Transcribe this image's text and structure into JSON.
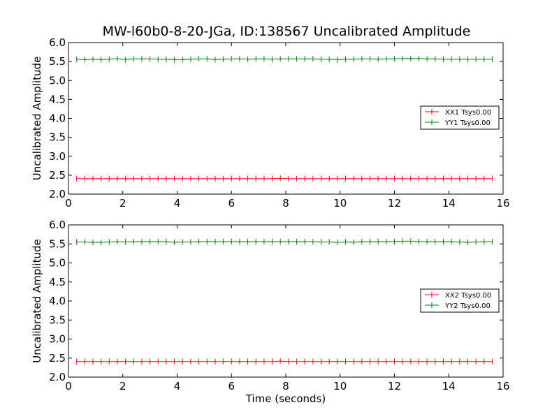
{
  "figure": {
    "title": "MW-l60b0-8-20-JGa, ID:138567 Uncalibrated Amplitude",
    "xlabel": "Time (seconds)"
  },
  "colors": {
    "xx": "#ff0000",
    "yy": "#008000",
    "axes": "#000000"
  },
  "chart_data": [
    {
      "type": "line",
      "ylabel": "Uncalibrated Amplitude",
      "xlim": [
        0,
        16
      ],
      "ylim": [
        2.0,
        6.0
      ],
      "xticks": [
        0,
        2,
        4,
        6,
        8,
        10,
        12,
        14,
        16
      ],
      "yticks": [
        2.0,
        2.5,
        3.0,
        3.5,
        4.0,
        4.5,
        5.0,
        5.5,
        6.0
      ],
      "legend_position": "center-right",
      "x": [
        0.3,
        0.6,
        0.9,
        1.2,
        1.5,
        1.8,
        2.1,
        2.4,
        2.7,
        3.0,
        3.3,
        3.6,
        3.9,
        4.2,
        4.5,
        4.8,
        5.1,
        5.4,
        5.7,
        6.0,
        6.3,
        6.6,
        6.9,
        7.2,
        7.5,
        7.8,
        8.1,
        8.4,
        8.7,
        9.0,
        9.3,
        9.6,
        9.9,
        10.2,
        10.5,
        10.8,
        11.1,
        11.4,
        11.7,
        12.0,
        12.3,
        12.6,
        12.9,
        13.2,
        13.5,
        13.8,
        14.1,
        14.4,
        14.7,
        15.0,
        15.3,
        15.6
      ],
      "series": [
        {
          "name": "XX1 Tsys0.00",
          "color_key": "xx",
          "values": [
            2.41,
            2.41,
            2.41,
            2.41,
            2.41,
            2.41,
            2.41,
            2.41,
            2.41,
            2.41,
            2.41,
            2.41,
            2.41,
            2.41,
            2.41,
            2.41,
            2.41,
            2.41,
            2.41,
            2.41,
            2.41,
            2.41,
            2.41,
            2.41,
            2.41,
            2.42,
            2.41,
            2.41,
            2.41,
            2.41,
            2.41,
            2.41,
            2.41,
            2.41,
            2.41,
            2.41,
            2.41,
            2.41,
            2.41,
            2.41,
            2.41,
            2.41,
            2.41,
            2.41,
            2.41,
            2.41,
            2.41,
            2.41,
            2.41,
            2.41,
            2.41,
            2.41
          ]
        },
        {
          "name": "YY1 Tsys0.00",
          "color_key": "yy",
          "values": [
            5.56,
            5.55,
            5.56,
            5.55,
            5.56,
            5.58,
            5.55,
            5.57,
            5.57,
            5.57,
            5.56,
            5.56,
            5.55,
            5.55,
            5.56,
            5.57,
            5.57,
            5.55,
            5.56,
            5.57,
            5.57,
            5.56,
            5.57,
            5.57,
            5.56,
            5.57,
            5.57,
            5.57,
            5.57,
            5.57,
            5.56,
            5.56,
            5.55,
            5.56,
            5.56,
            5.57,
            5.57,
            5.56,
            5.57,
            5.57,
            5.58,
            5.58,
            5.58,
            5.57,
            5.57,
            5.56,
            5.56,
            5.56,
            5.56,
            5.56,
            5.56,
            5.56
          ]
        }
      ]
    },
    {
      "type": "line",
      "ylabel": "Uncalibrated Amplitude",
      "xlim": [
        0,
        16
      ],
      "ylim": [
        2.0,
        6.0
      ],
      "xticks": [
        0,
        2,
        4,
        6,
        8,
        10,
        12,
        14,
        16
      ],
      "yticks": [
        2.0,
        2.5,
        3.0,
        3.5,
        4.0,
        4.5,
        5.0,
        5.5,
        6.0
      ],
      "legend_position": "center-right",
      "x": [
        0.3,
        0.6,
        0.9,
        1.2,
        1.5,
        1.8,
        2.1,
        2.4,
        2.7,
        3.0,
        3.3,
        3.6,
        3.9,
        4.2,
        4.5,
        4.8,
        5.1,
        5.4,
        5.7,
        6.0,
        6.3,
        6.6,
        6.9,
        7.2,
        7.5,
        7.8,
        8.1,
        8.4,
        8.7,
        9.0,
        9.3,
        9.6,
        9.9,
        10.2,
        10.5,
        10.8,
        11.1,
        11.4,
        11.7,
        12.0,
        12.3,
        12.6,
        12.9,
        13.2,
        13.5,
        13.8,
        14.1,
        14.4,
        14.7,
        15.0,
        15.3,
        15.6
      ],
      "series": [
        {
          "name": "XX2 Tsys0.00",
          "color_key": "xx",
          "values": [
            2.41,
            2.41,
            2.41,
            2.41,
            2.41,
            2.41,
            2.41,
            2.41,
            2.41,
            2.41,
            2.41,
            2.41,
            2.41,
            2.41,
            2.41,
            2.41,
            2.41,
            2.41,
            2.41,
            2.41,
            2.41,
            2.41,
            2.41,
            2.41,
            2.41,
            2.42,
            2.41,
            2.41,
            2.41,
            2.41,
            2.41,
            2.41,
            2.41,
            2.41,
            2.41,
            2.41,
            2.41,
            2.41,
            2.41,
            2.41,
            2.41,
            2.41,
            2.41,
            2.41,
            2.41,
            2.41,
            2.41,
            2.41,
            2.41,
            2.41,
            2.41,
            2.41
          ]
        },
        {
          "name": "YY2 Tsys0.00",
          "color_key": "yy",
          "values": [
            5.55,
            5.55,
            5.54,
            5.54,
            5.55,
            5.56,
            5.55,
            5.56,
            5.56,
            5.56,
            5.56,
            5.56,
            5.54,
            5.55,
            5.55,
            5.56,
            5.56,
            5.56,
            5.56,
            5.56,
            5.56,
            5.56,
            5.56,
            5.56,
            5.56,
            5.56,
            5.56,
            5.56,
            5.56,
            5.56,
            5.55,
            5.55,
            5.54,
            5.55,
            5.54,
            5.56,
            5.56,
            5.56,
            5.56,
            5.56,
            5.57,
            5.57,
            5.56,
            5.56,
            5.56,
            5.56,
            5.56,
            5.55,
            5.54,
            5.55,
            5.56,
            5.56
          ]
        }
      ]
    }
  ]
}
